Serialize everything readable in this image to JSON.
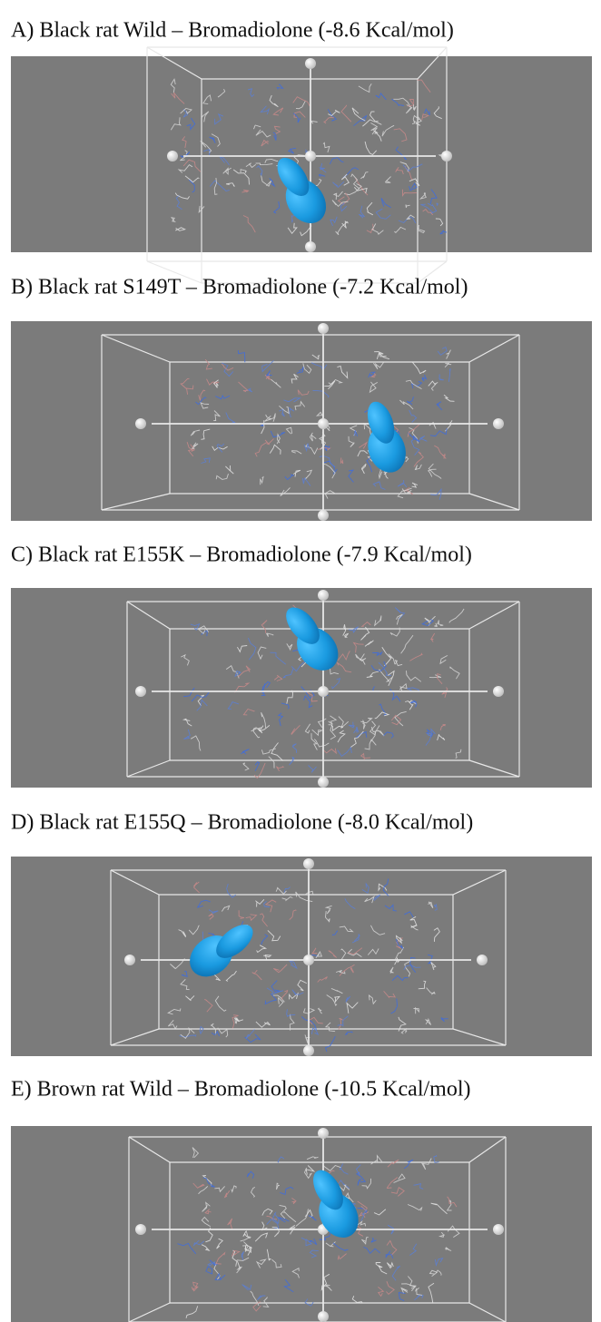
{
  "panels": [
    {
      "caption": "A)  Black rat Wild – Bromadiolone (-8.6 Kcal/mol)"
    },
    {
      "caption": "B)  Black rat S149T – Bromadiolone (-7.2 Kcal/mol)"
    },
    {
      "caption": "C)  Black rat E155K – Bromadiolone (-7.9 Kcal/mol)"
    },
    {
      "caption": "D)  Black rat E155Q – Bromadiolone (-8.0 Kcal/mol)"
    },
    {
      "caption": "E)  Brown rat Wild – Bromadiolone (-10.5 Kcal/mol)"
    }
  ]
}
